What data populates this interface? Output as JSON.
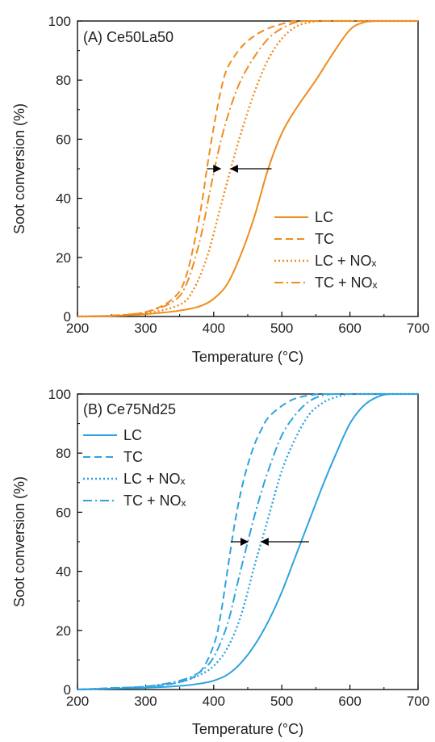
{
  "chart_data": [
    {
      "type": "line",
      "panel_label": "(A) Ce50La50",
      "xlabel": "Temperature (°C)",
      "ylabel": "Soot conversion (%)",
      "xlim": [
        200,
        700
      ],
      "ylim": [
        0,
        100
      ],
      "xticks": [
        "200",
        "300",
        "400",
        "500",
        "600",
        "700"
      ],
      "yticks": [
        "0",
        "20",
        "40",
        "60",
        "80",
        "100"
      ],
      "grid": false,
      "legend_position": "bottom-right",
      "color": "#F08C1E",
      "series": [
        {
          "name": "LC",
          "style": "solid",
          "x": [
            200,
            250,
            300,
            350,
            380,
            400,
            420,
            440,
            460,
            480,
            500,
            520,
            550,
            575,
            600,
            620,
            640,
            660,
            680,
            700
          ],
          "y": [
            0,
            0.2,
            0.8,
            2,
            3.5,
            6,
            11,
            21,
            34,
            50,
            62,
            70,
            80,
            89,
            97,
            99.5,
            100,
            100,
            100,
            100
          ]
        },
        {
          "name": "TC",
          "style": "dashed",
          "x": [
            200,
            250,
            300,
            340,
            360,
            380,
            390,
            400,
            410,
            420,
            440,
            460,
            480,
            500,
            520,
            540,
            560,
            600,
            700
          ],
          "y": [
            0,
            0.3,
            1.5,
            6,
            14,
            35,
            50,
            64,
            76,
            84,
            91,
            95,
            97.5,
            99,
            100,
            100,
            100,
            100,
            100
          ]
        },
        {
          "name": "LC + NOₓ",
          "style": "dotted",
          "x": [
            200,
            250,
            300,
            350,
            370,
            390,
            410,
            425,
            440,
            460,
            480,
            500,
            520,
            540,
            560,
            580,
            600,
            700
          ],
          "y": [
            0,
            0.2,
            1,
            4,
            9,
            20,
            37,
            50,
            62,
            76,
            87,
            94,
            98,
            99.5,
            100,
            100,
            100,
            100
          ]
        },
        {
          "name": "TC + NOₓ",
          "style": "dashdot",
          "x": [
            200,
            250,
            300,
            340,
            360,
            380,
            395,
            410,
            425,
            440,
            460,
            480,
            500,
            520,
            540,
            560,
            600,
            700
          ],
          "y": [
            0,
            0.3,
            1.5,
            5,
            11,
            26,
            43,
            59,
            71,
            80,
            88,
            94,
            97.5,
            99.5,
            100,
            100,
            100,
            100
          ]
        }
      ],
      "arrows": [
        {
          "y": 50,
          "x_from": 485,
          "x_to": 425
        },
        {
          "y": 50,
          "x_from": 390,
          "x_to": 410
        }
      ]
    },
    {
      "type": "line",
      "panel_label": "(B) Ce75Nd25",
      "xlabel": "Temperature (°C)",
      "ylabel": "Soot conversion (%)",
      "xlim": [
        200,
        700
      ],
      "ylim": [
        0,
        100
      ],
      "xticks": [
        "200",
        "300",
        "400",
        "500",
        "600",
        "700"
      ],
      "yticks": [
        "0",
        "20",
        "40",
        "60",
        "80",
        "100"
      ],
      "grid": false,
      "legend_position": "top-left",
      "color": "#2EA3E0",
      "series": [
        {
          "name": "LC",
          "style": "solid",
          "x": [
            200,
            250,
            300,
            350,
            380,
            400,
            420,
            440,
            460,
            480,
            500,
            520,
            540,
            560,
            580,
            600,
            620,
            640,
            660,
            700
          ],
          "y": [
            0,
            0.3,
            0.6,
            1.2,
            2,
            3,
            5,
            9,
            15,
            23,
            33,
            45,
            57,
            69,
            80,
            90,
            96,
            99,
            100,
            100
          ]
        },
        {
          "name": "TC",
          "style": "dashed",
          "x": [
            200,
            250,
            300,
            350,
            380,
            400,
            410,
            420,
            430,
            440,
            450,
            460,
            470,
            480,
            500,
            520,
            540,
            560,
            600,
            700
          ],
          "y": [
            0,
            0.5,
            1,
            2.5,
            6,
            15,
            25,
            40,
            55,
            67,
            76,
            83,
            88,
            92,
            96,
            98.5,
            99.5,
            100,
            100,
            100
          ]
        },
        {
          "name": "LC + NOₓ",
          "style": "dotted",
          "x": [
            200,
            250,
            300,
            350,
            380,
            400,
            420,
            440,
            460,
            470,
            480,
            500,
            520,
            540,
            560,
            580,
            600,
            620,
            700
          ],
          "y": [
            0,
            0.4,
            1,
            2.5,
            5,
            8,
            14,
            25,
            42,
            50,
            58,
            74,
            85,
            93,
            97,
            99,
            100,
            100,
            100
          ]
        },
        {
          "name": "TC + NOₓ",
          "style": "dashdot",
          "x": [
            200,
            250,
            300,
            350,
            380,
            400,
            420,
            435,
            450,
            465,
            480,
            500,
            520,
            540,
            560,
            580,
            600,
            700
          ],
          "y": [
            0,
            0.4,
            1,
            3,
            6,
            11,
            22,
            36,
            50,
            63,
            74,
            86,
            93,
            97.5,
            99.5,
            100,
            100,
            100
          ]
        }
      ],
      "arrows": [
        {
          "y": 50,
          "x_from": 540,
          "x_to": 470
        },
        {
          "y": 50,
          "x_from": 425,
          "x_to": 450
        }
      ]
    }
  ]
}
